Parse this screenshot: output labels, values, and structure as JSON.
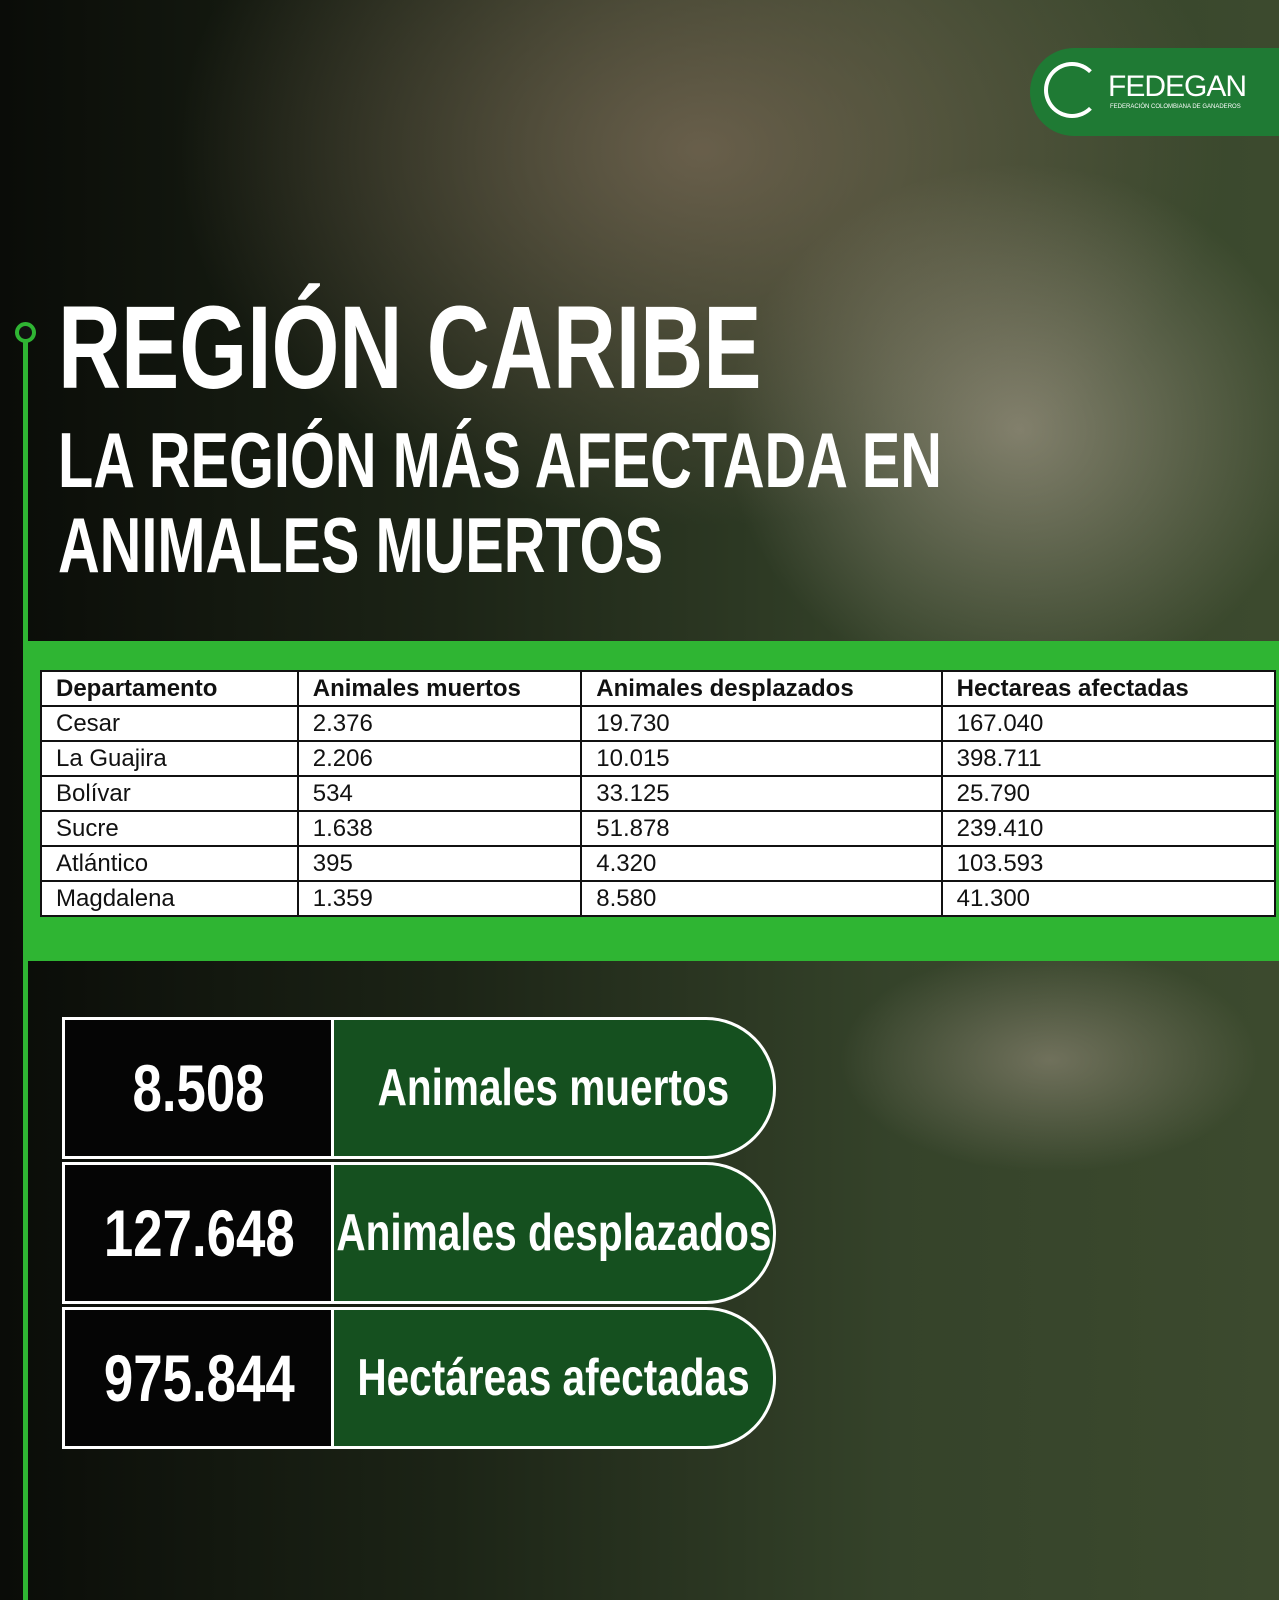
{
  "logo": {
    "name": "FEDEGAN",
    "tagline": "FEDERACIÓN COLOMBIANA DE GANADEROS"
  },
  "header": {
    "title": "REGIÓN CARIBE",
    "subtitle": [
      "LA REGIÓN MÁS AFECTADA EN",
      "ANIMALES MUERTOS"
    ]
  },
  "table": {
    "columns": [
      "Departamento",
      "Animales muertos",
      "Animales desplazados",
      "Hectareas afectadas"
    ],
    "rows": [
      [
        "Cesar",
        "2.376",
        "19.730",
        "167.040"
      ],
      [
        "La Guajira",
        "2.206",
        "10.015",
        "398.711"
      ],
      [
        "Bolívar",
        "534",
        "33.125",
        "25.790"
      ],
      [
        "Sucre",
        "1.638",
        "51.878",
        "239.410"
      ],
      [
        "Atlántico",
        "395",
        "4.320",
        "103.593"
      ],
      [
        "Magdalena",
        "1.359",
        "8.580",
        "41.300"
      ]
    ]
  },
  "summary": [
    {
      "value": "8.508",
      "label": "Animales muertos"
    },
    {
      "value": "127.648",
      "label": "Animales desplazados"
    },
    {
      "value": "975.844",
      "label": "Hectáreas afectadas"
    }
  ]
}
